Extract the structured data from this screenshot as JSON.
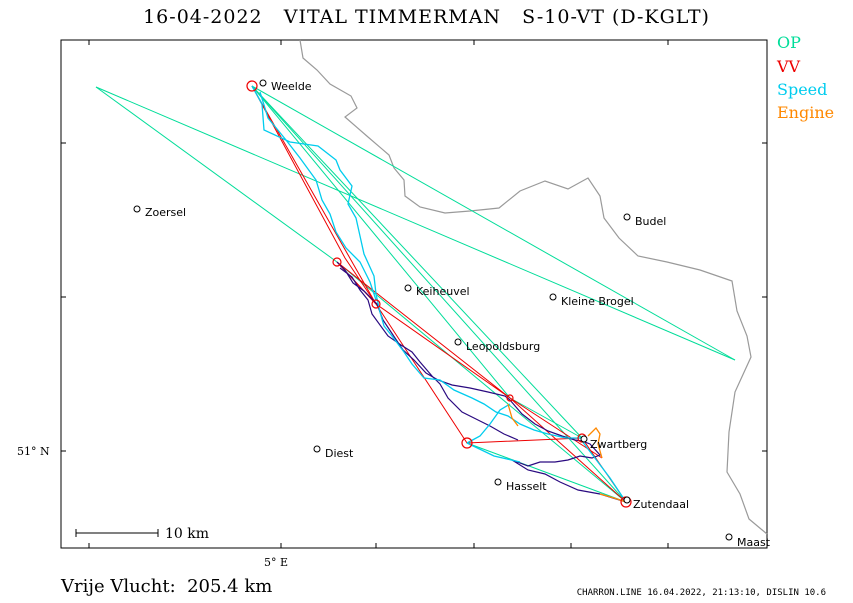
{
  "title": "16-04-2022   VITAL TIMMERMAN   S-10-VT (D-KGLT)",
  "legend": {
    "op": {
      "label": "OP",
      "color": "#00dd99"
    },
    "vv": {
      "label": "VV",
      "color": "#ee0000"
    },
    "speed": {
      "label": "Speed",
      "color": "#00ccee"
    },
    "engine": {
      "label": "Engine",
      "color": "#ff8800"
    }
  },
  "track_color": "#2a0a80",
  "border_color": "#9a9a9a",
  "axes": {
    "longitude_label": "5° E",
    "latitude_label": "51° N"
  },
  "scale_bar": {
    "label": "10 km"
  },
  "distance": "Vrije Vlucht:  205.4 km",
  "footer": "CHARRON.LINE 16.04.2022, 21:13:10, DISLIN 10.6",
  "towns": [
    "Weelde",
    "Zoersel",
    "Budel",
    "Keiheuvel",
    "Kleine Brogel",
    "Leopoldsburg",
    "Zwartberg",
    "Diest",
    "Hasselt",
    "Zutendaal",
    "Maast"
  ]
}
